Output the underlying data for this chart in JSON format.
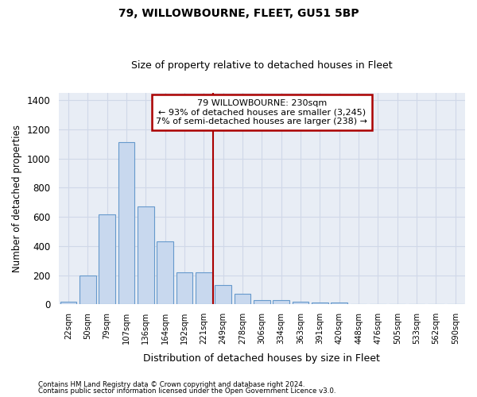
{
  "title1": "79, WILLOWBOURNE, FLEET, GU51 5BP",
  "title2": "Size of property relative to detached houses in Fleet",
  "xlabel": "Distribution of detached houses by size in Fleet",
  "ylabel": "Number of detached properties",
  "bar_labels": [
    "22sqm",
    "50sqm",
    "79sqm",
    "107sqm",
    "136sqm",
    "164sqm",
    "192sqm",
    "221sqm",
    "249sqm",
    "278sqm",
    "306sqm",
    "334sqm",
    "363sqm",
    "391sqm",
    "420sqm",
    "448sqm",
    "476sqm",
    "505sqm",
    "533sqm",
    "562sqm",
    "590sqm"
  ],
  "bar_values": [
    20,
    195,
    615,
    1110,
    670,
    430,
    220,
    220,
    130,
    70,
    30,
    30,
    20,
    15,
    10,
    0,
    0,
    0,
    0,
    0,
    0
  ],
  "bar_color": "#c8d8ee",
  "bar_edge_color": "#6699cc",
  "vline_x": 7.5,
  "vline_color": "#aa0000",
  "annotation_line1": "79 WILLOWBOURNE: 230sqm",
  "annotation_line2": "← 93% of detached houses are smaller (3,245)",
  "annotation_line3": "7% of semi-detached houses are larger (238) →",
  "annotation_box_color": "#aa0000",
  "ylim": [
    0,
    1450
  ],
  "yticks": [
    0,
    200,
    400,
    600,
    800,
    1000,
    1200,
    1400
  ],
  "bg_color": "#e8edf5",
  "grid_color": "#d0d8e8",
  "fig_bg": "#ffffff",
  "footer1": "Contains HM Land Registry data © Crown copyright and database right 2024.",
  "footer2": "Contains public sector information licensed under the Open Government Licence v3.0."
}
